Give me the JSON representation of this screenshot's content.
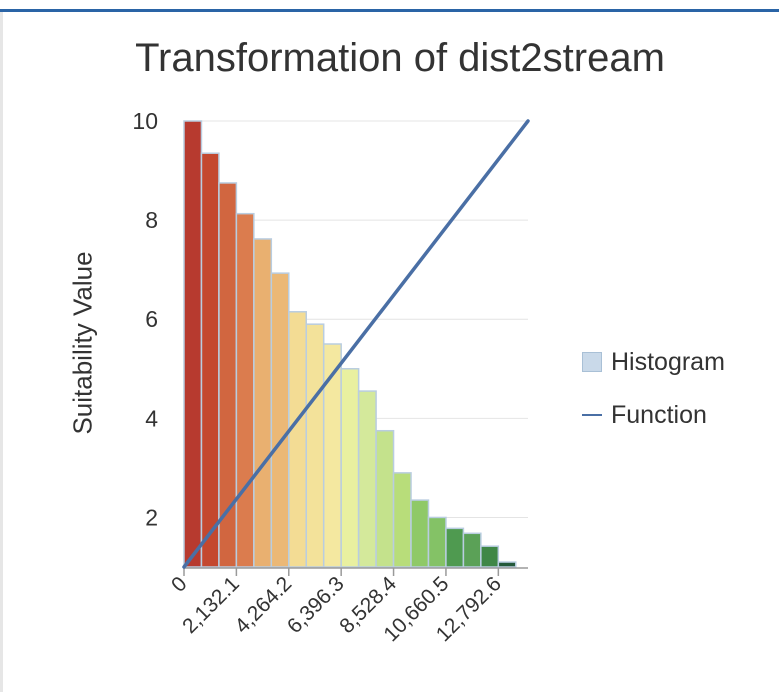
{
  "chart_data": {
    "type": "bar",
    "title": "Transformation of dist2stream",
    "ylabel": "Suitability Value",
    "xlabel": "",
    "ylim": [
      1,
      10
    ],
    "xlim": [
      0,
      14000
    ],
    "yticks": [
      "2",
      "4",
      "6",
      "8",
      "10"
    ],
    "ytick_values": [
      2,
      4,
      6,
      8,
      10
    ],
    "xticks": [
      "0",
      "2,132.1",
      "4,264.2",
      "6,396.3",
      "8,528.4",
      "10,660.5",
      "12,792.6"
    ],
    "xtick_values": [
      0,
      2132.1,
      4264.2,
      6396.3,
      8528.4,
      10660.5,
      12792.6
    ],
    "legend": {
      "position": "right",
      "histogram_label": "Histogram",
      "function_label": "Function"
    },
    "grid": true,
    "histogram": {
      "name": "Histogram",
      "bin_width": 710.7,
      "values": [
        10,
        9.35,
        8.75,
        8.13,
        7.62,
        6.93,
        6.15,
        5.9,
        5.5,
        5.0,
        4.55,
        3.75,
        2.9,
        2.35,
        2.0,
        1.78,
        1.68,
        1.42,
        1.1
      ],
      "colors": [
        "#b73a2f",
        "#c4482f",
        "#d16640",
        "#db7c4e",
        "#e9b070",
        "#ebb876",
        "#f3dc94",
        "#f3e29a",
        "#f4e8a0",
        "#e9f0a0",
        "#d4e99b",
        "#c4e28c",
        "#b8dd7a",
        "#8fc967",
        "#84c266",
        "#4f9a50",
        "#5ba157",
        "#3f8746",
        "#24593a"
      ]
    },
    "function": {
      "name": "Function",
      "x": [
        0,
        14000
      ],
      "y": [
        1,
        10
      ]
    }
  }
}
